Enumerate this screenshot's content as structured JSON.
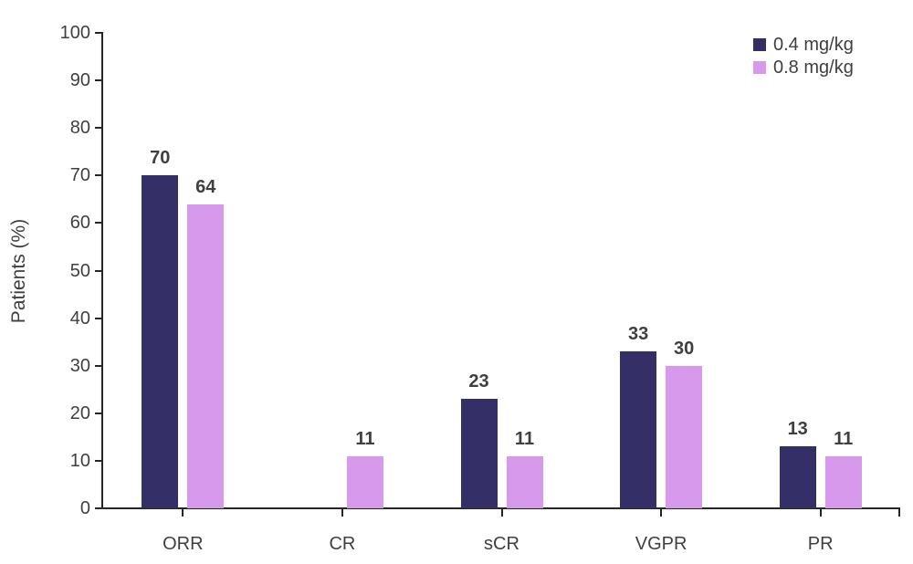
{
  "chart_data": {
    "type": "bar",
    "title": "",
    "ylabel": "Patients (%)",
    "xlabel": "",
    "categories": [
      "ORR",
      "CR",
      "sCR",
      "VGPR",
      "PR"
    ],
    "series": [
      {
        "name": "0.4 mg/kg",
        "color": "#342f66",
        "values": [
          70,
          0,
          23,
          33,
          13
        ]
      },
      {
        "name": "0.8 mg/kg",
        "color": "#d699ec",
        "values": [
          64,
          11,
          11,
          30,
          11
        ]
      }
    ],
    "ylim": [
      0,
      100
    ],
    "yticks": [
      0,
      10,
      20,
      30,
      40,
      50,
      60,
      70,
      80,
      90,
      100
    ],
    "grid": false,
    "legend_position": "top-right",
    "data_labels_bold": true,
    "zero_values_hidden": true
  },
  "colors": {
    "axis": "#262626",
    "label_text": "#3f3f3f",
    "background": "#ffffff"
  }
}
